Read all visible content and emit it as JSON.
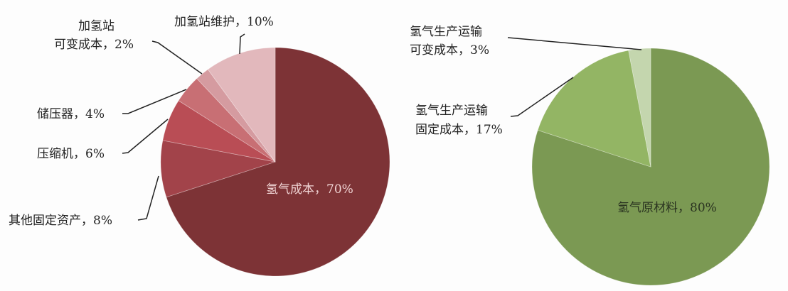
{
  "chart_data": [
    {
      "type": "pie",
      "slices": [
        {
          "label": "氢气成本，70%",
          "value": 70,
          "color": "#7d3336"
        },
        {
          "label_lines": [
            "其他固定资产，8%"
          ],
          "value": 8,
          "color": "#a2434a"
        },
        {
          "label_lines": [
            "压缩机，6%"
          ],
          "value": 6,
          "color": "#b94d55"
        },
        {
          "label_lines": [
            "储压器，4%"
          ],
          "value": 4,
          "color": "#c86f74"
        },
        {
          "label_lines": [
            "加氢站",
            "可变成本，2%"
          ],
          "value": 2,
          "color": "#d59ba0"
        },
        {
          "label_lines": [
            "加氢站维护，10%"
          ],
          "value": 10,
          "color": "#e2b8bc"
        }
      ]
    },
    {
      "type": "pie",
      "slices": [
        {
          "label": "氢气原材料，80%",
          "value": 80,
          "color": "#7b9953"
        },
        {
          "label_lines": [
            "氢气生产运输",
            "固定成本，17%"
          ],
          "value": 17,
          "color": "#93b564"
        },
        {
          "label_lines": [
            "氢气生产运输",
            "可变成本，3%"
          ],
          "value": 3,
          "color": "#c4d6ae"
        }
      ]
    }
  ]
}
